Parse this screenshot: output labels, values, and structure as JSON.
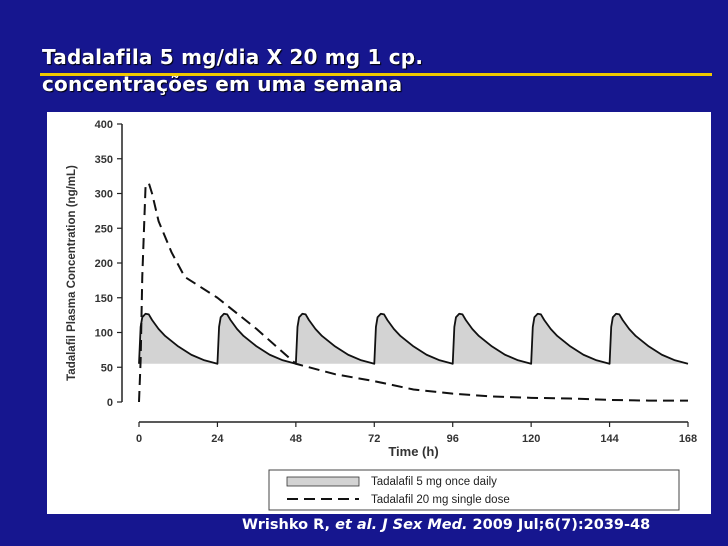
{
  "slide": {
    "title_line1": "Tadalafila  5 mg/dia  X 20 mg 1 cp.",
    "title_line2": "concentrações em uma semana",
    "citation_author": "Wrishko R, ",
    "citation_journal": "et al. J Sex Med.",
    "citation_rest": " 2009 Jul;6(7):2039-48"
  },
  "colors": {
    "background": "#16168f",
    "title_rule": "#f0c800",
    "area_fill": "#d3d3d3"
  },
  "chart_data": {
    "type": "line",
    "xlabel": "Time (h)",
    "ylabel": "Tadalafil Plasma Concentration (ng/mL)",
    "xlim": [
      0,
      168
    ],
    "ylim": [
      0,
      400
    ],
    "xticks": [
      0,
      24,
      48,
      72,
      96,
      120,
      144,
      168
    ],
    "yticks": [
      0,
      50,
      100,
      150,
      200,
      250,
      300,
      350,
      400
    ],
    "legend_position": "bottom-right",
    "series": [
      {
        "name": "Tadalafil 5 mg once daily",
        "style": "solid-shaded",
        "dose_interval_h": 24,
        "doses": 7,
        "trough": 55,
        "peak": 127,
        "tmax_h": 2,
        "profile": [
          [
            0,
            55
          ],
          [
            0.5,
            108
          ],
          [
            1,
            122
          ],
          [
            2,
            127
          ],
          [
            3,
            126
          ],
          [
            4,
            118
          ],
          [
            6,
            105
          ],
          [
            8,
            95
          ],
          [
            12,
            80
          ],
          [
            16,
            68
          ],
          [
            20,
            60
          ],
          [
            24,
            55
          ]
        ],
        "final_trough_at_168": 55
      },
      {
        "name": "Tadalafil 20 mg single dose",
        "style": "dashed",
        "points": [
          [
            0,
            0
          ],
          [
            0.5,
            60
          ],
          [
            1,
            180
          ],
          [
            2,
            310
          ],
          [
            3,
            315
          ],
          [
            4,
            300
          ],
          [
            6,
            260
          ],
          [
            10,
            215
          ],
          [
            14,
            180
          ],
          [
            24,
            150
          ],
          [
            36,
            105
          ],
          [
            48,
            55
          ],
          [
            60,
            40
          ],
          [
            72,
            30
          ],
          [
            84,
            18
          ],
          [
            96,
            12
          ],
          [
            108,
            8
          ],
          [
            120,
            6
          ],
          [
            132,
            5
          ],
          [
            144,
            3
          ],
          [
            156,
            2
          ],
          [
            168,
            2
          ]
        ]
      }
    ]
  }
}
